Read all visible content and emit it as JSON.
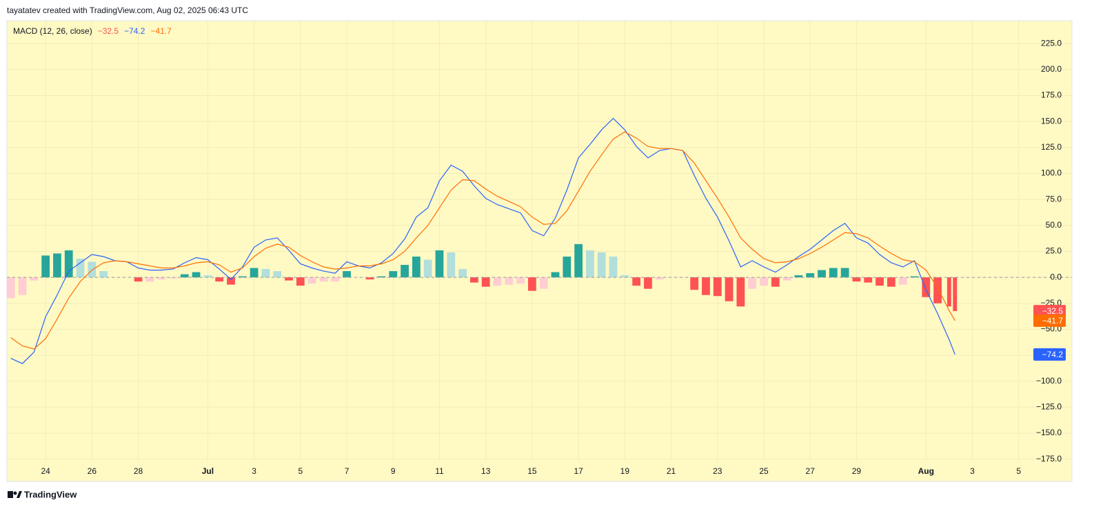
{
  "header": "tayatatev created with TradingView.com, Aug 02, 2025 06:43 UTC",
  "footer": "TradingView",
  "chart_data": {
    "type": "macd",
    "title": "MACD (12, 26, close)",
    "x": [
      22.5,
      23,
      23.5,
      24,
      24.5,
      25,
      25.5,
      26,
      26.5,
      27,
      27.5,
      28,
      28.5,
      29,
      29.5,
      30,
      30.5,
      31,
      31.5,
      32,
      32.5,
      33,
      33.5,
      34,
      34.5,
      35,
      35.5,
      36,
      36.5,
      37,
      37.5,
      38,
      38.5,
      39,
      39.5,
      40,
      40.5,
      41,
      41.5,
      42,
      42.5,
      43,
      43.5,
      44,
      44.5,
      45,
      45.5,
      46,
      46.5,
      47,
      47.5,
      48,
      48.5,
      49,
      49.5,
      50,
      50.5,
      51,
      51.5,
      52,
      52.5,
      53,
      53.5,
      54,
      54.5,
      55,
      55.5,
      56,
      56.5,
      57,
      57.5,
      58,
      58.5,
      59,
      59.5,
      60,
      60.5,
      61,
      61.5,
      62,
      62.5,
      63,
      63.25
    ],
    "series": [
      {
        "type": "histogram",
        "color": "#ff5252",
        "last_value_label": "−32.5",
        "values": [
          -20,
          -17,
          -3,
          21,
          23,
          26,
          18,
          15,
          6,
          0,
          0,
          -4,
          -4,
          -2,
          -1,
          3,
          5,
          2,
          -4,
          -7,
          1,
          9,
          8,
          6,
          -3,
          -8,
          -6,
          -4,
          -4,
          6,
          0,
          -2,
          1,
          6,
          12,
          20,
          17,
          26,
          24,
          8,
          -5,
          -9,
          -8,
          -7,
          -6,
          -13,
          -11,
          5,
          20,
          32,
          26,
          24,
          20,
          2,
          -8,
          -11,
          -2,
          0,
          0,
          -12,
          -17,
          -18,
          -23,
          -28,
          -11,
          -8,
          -9,
          -3,
          2,
          4,
          7,
          9,
          9,
          -4,
          -5,
          -8,
          -9,
          -7,
          1,
          -19,
          -25,
          -28,
          -32.5
        ]
      },
      {
        "type": "line",
        "color": "#2962ff",
        "last_value_label": "−74.2",
        "values": [
          -78,
          -83,
          -72,
          -38,
          -17,
          6,
          14,
          22,
          20,
          16,
          15,
          9,
          7,
          7,
          8,
          14,
          19,
          17,
          8,
          -2,
          10,
          29,
          36,
          38,
          26,
          13,
          9,
          6,
          4,
          15,
          11,
          9,
          14,
          23,
          37,
          58,
          67,
          93,
          108,
          102,
          88,
          76,
          70,
          66,
          62,
          45,
          40,
          57,
          84,
          115,
          128,
          142,
          153,
          142,
          126,
          115,
          122,
          124,
          122,
          98,
          76,
          58,
          35,
          10,
          16,
          10,
          5,
          12,
          20,
          27,
          36,
          45,
          52,
          38,
          33,
          22,
          14,
          10,
          16,
          -12,
          -35,
          -60,
          -74.2
        ]
      },
      {
        "type": "line",
        "color": "#ff6d00",
        "last_value_label": "−41.7",
        "values": [
          -58,
          -66,
          -69,
          -59,
          -40,
          -20,
          -4,
          7,
          14,
          16,
          15,
          13,
          11,
          9,
          9,
          11,
          14,
          15,
          12,
          5,
          9,
          20,
          28,
          32,
          29,
          21,
          15,
          10,
          8,
          9,
          11,
          11,
          13,
          17,
          25,
          38,
          50,
          67,
          84,
          94,
          93,
          85,
          78,
          73,
          68,
          58,
          51,
          52,
          64,
          83,
          102,
          118,
          133,
          140,
          134,
          126,
          124,
          124,
          122,
          110,
          93,
          76,
          58,
          38,
          27,
          18,
          14,
          15,
          18,
          23,
          29,
          36,
          43,
          42,
          38,
          30,
          23,
          17,
          15,
          7,
          -10,
          -32,
          -41.7
        ]
      }
    ],
    "histogram_colors": {
      "rising_above": "#26a69a",
      "falling_above": "#b2dfdb",
      "falling_below": "#ff5252",
      "rising_below": "#ffcdd2"
    },
    "xlim": [
      22.33,
      68.3
    ],
    "xticks": [
      24,
      26,
      28,
      {
        "value": 31,
        "label": "Jul"
      },
      {
        "value": 33,
        "label": "3"
      },
      {
        "value": 35,
        "label": "5"
      },
      {
        "value": 37,
        "label": "7"
      },
      {
        "value": 39,
        "label": "9"
      },
      {
        "value": 41,
        "label": "11"
      },
      {
        "value": 43,
        "label": "13"
      },
      {
        "value": 45,
        "label": "15"
      },
      {
        "value": 47,
        "label": "17"
      },
      {
        "value": 49,
        "label": "19"
      },
      {
        "value": 51,
        "label": "21"
      },
      {
        "value": 53,
        "label": "23"
      },
      {
        "value": 55,
        "label": "25"
      },
      {
        "value": 57,
        "label": "27"
      },
      {
        "value": 59,
        "label": "29"
      },
      {
        "value": 62,
        "label": "Aug"
      },
      {
        "value": 64,
        "label": "3"
      },
      {
        "value": 66,
        "label": "5"
      }
    ],
    "ylim": [
      -176.5,
      247
    ],
    "yticks": [
      {
        "value": 225,
        "label": "225.0"
      },
      {
        "value": 200,
        "label": "200.0"
      },
      {
        "value": 175,
        "label": "175.0"
      },
      {
        "value": 150,
        "label": "150.0"
      },
      {
        "value": 125,
        "label": "125.0"
      },
      {
        "value": 100,
        "label": "100.0"
      },
      {
        "value": 75,
        "label": "75.0"
      },
      {
        "value": 50,
        "label": "50.0"
      },
      {
        "value": 25,
        "label": "25.0"
      },
      {
        "value": 0,
        "label": "0.0"
      },
      {
        "value": -25,
        "label": "−25.0"
      },
      {
        "value": -50,
        "label": "−50.0"
      },
      {
        "value": -75,
        "label": "−75.0"
      },
      {
        "value": -100,
        "label": "−100.0"
      },
      {
        "value": -125,
        "label": "−125.0"
      },
      {
        "value": -150,
        "label": "−150.0"
      },
      {
        "value": -175,
        "label": "−175.0"
      }
    ],
    "grid": true,
    "zero_line": true,
    "background": "#fff9c4"
  }
}
